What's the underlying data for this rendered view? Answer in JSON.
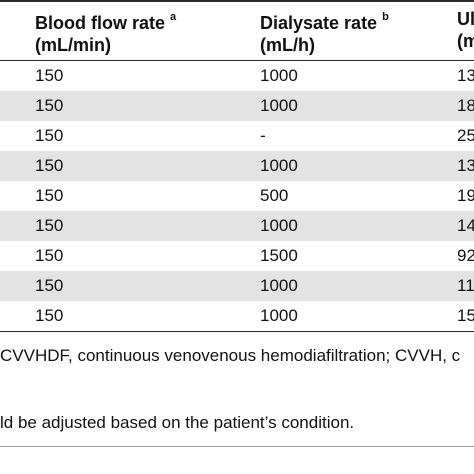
{
  "table": {
    "columns": [
      {
        "label": "Blood flow rate",
        "mark": "a",
        "unit": "(mL/min)"
      },
      {
        "label": "Dialysate rate",
        "mark": "b",
        "unit": "(mL/h)"
      },
      {
        "label": "Ul",
        "mark": "",
        "unit": "(m"
      }
    ],
    "rows": [
      {
        "blood_flow": "150",
        "dialysate": "1000",
        "third": "13"
      },
      {
        "blood_flow": "150",
        "dialysate": "1000",
        "third": "18"
      },
      {
        "blood_flow": "150",
        "dialysate": "-",
        "third": "25"
      },
      {
        "blood_flow": "150",
        "dialysate": "1000",
        "third": "13"
      },
      {
        "blood_flow": "150",
        "dialysate": "500",
        "third": "19"
      },
      {
        "blood_flow": "150",
        "dialysate": "1000",
        "third": "14"
      },
      {
        "blood_flow": "150",
        "dialysate": "1500",
        "third": "92"
      },
      {
        "blood_flow": "150",
        "dialysate": "1000",
        "third": "11"
      },
      {
        "blood_flow": "150",
        "dialysate": "1000",
        "third": "15"
      }
    ],
    "shaded_rows": [
      1,
      3,
      5,
      7
    ],
    "shade_color": "#e3e3e3"
  },
  "footnotes": {
    "abbreviations": "CVVHDF, continuous venovenous hemodiafiltration; CVVH, c",
    "note": "ld be adjusted based on the patient’s condition."
  }
}
